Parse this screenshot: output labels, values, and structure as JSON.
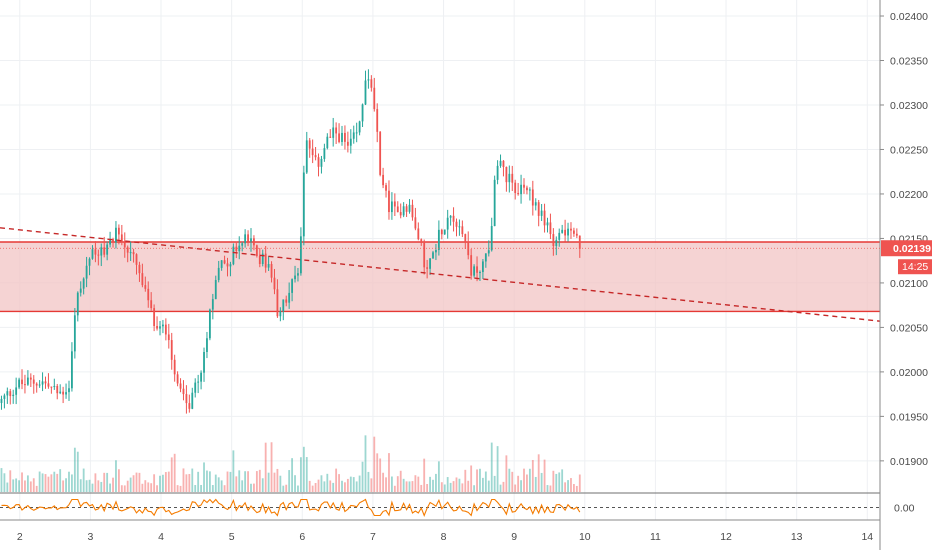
{
  "colors": {
    "up": "#26a69a",
    "down": "#ef5350",
    "zone_fill": "#f2c4c4",
    "zone_line": "#e53935",
    "trend": "#c62828",
    "oscillator": "#f57c00",
    "grid": "#eef0f3",
    "axis_text": "#4a4a4a",
    "price_label": "#ef5350"
  },
  "chart_data": {
    "type": "candlestick",
    "price_axis": {
      "ylim": [
        0.01865,
        0.02418
      ],
      "ticks": [
        "0.02400",
        "0.02350",
        "0.02300",
        "0.02250",
        "0.02200",
        "0.02150",
        "0.02100",
        "0.02050",
        "0.02000",
        "0.01950",
        "0.01900"
      ]
    },
    "time_axis": {
      "xlim": [
        1.72,
        14.18
      ],
      "ticks": [
        "2",
        "3",
        "4",
        "5",
        "6",
        "7",
        "8",
        "9",
        "10",
        "11",
        "12",
        "13",
        "14"
      ]
    },
    "last_price": "0.02139",
    "countdown": "14:25",
    "zone": {
      "upper": 0.02146,
      "lower": 0.02068
    },
    "trend_line": {
      "from": [
        1.72,
        0.02162
      ],
      "to": [
        14.18,
        0.02057
      ]
    },
    "keypoints": [
      [
        1.72,
        0.01965
      ],
      [
        1.95,
        0.01985
      ],
      [
        2.3,
        0.0199
      ],
      [
        2.55,
        0.01975
      ],
      [
        2.7,
        0.01985
      ],
      [
        2.8,
        0.0208
      ],
      [
        2.95,
        0.0212
      ],
      [
        3.05,
        0.0214
      ],
      [
        3.2,
        0.0213
      ],
      [
        3.35,
        0.0216
      ],
      [
        3.5,
        0.0214
      ],
      [
        3.65,
        0.0212
      ],
      [
        3.8,
        0.0208
      ],
      [
        3.95,
        0.02045
      ],
      [
        4.1,
        0.0205
      ],
      [
        4.2,
        0.0199
      ],
      [
        4.35,
        0.0196
      ],
      [
        4.45,
        0.0197
      ],
      [
        4.6,
        0.0201
      ],
      [
        4.7,
        0.0208
      ],
      [
        4.85,
        0.0212
      ],
      [
        5.0,
        0.0213
      ],
      [
        5.2,
        0.0215
      ],
      [
        5.4,
        0.0213
      ],
      [
        5.55,
        0.0211
      ],
      [
        5.65,
        0.0207
      ],
      [
        5.8,
        0.0209
      ],
      [
        5.95,
        0.0211
      ],
      [
        6.05,
        0.0226
      ],
      [
        6.2,
        0.0223
      ],
      [
        6.35,
        0.0226
      ],
      [
        6.5,
        0.0227
      ],
      [
        6.65,
        0.0225
      ],
      [
        6.8,
        0.0227
      ],
      [
        6.9,
        0.0233
      ],
      [
        7.0,
        0.0232
      ],
      [
        7.1,
        0.0223
      ],
      [
        7.2,
        0.0219
      ],
      [
        7.35,
        0.0218
      ],
      [
        7.5,
        0.0219
      ],
      [
        7.6,
        0.0216
      ],
      [
        7.75,
        0.0212
      ],
      [
        7.85,
        0.0213
      ],
      [
        7.95,
        0.0216
      ],
      [
        8.1,
        0.0218
      ],
      [
        8.2,
        0.0217
      ],
      [
        8.3,
        0.0215
      ],
      [
        8.4,
        0.0211
      ],
      [
        8.55,
        0.0212
      ],
      [
        8.65,
        0.0214
      ],
      [
        8.75,
        0.0224
      ],
      [
        8.85,
        0.0223
      ],
      [
        9.0,
        0.022
      ],
      [
        9.15,
        0.0221
      ],
      [
        9.3,
        0.0219
      ],
      [
        9.45,
        0.0217
      ],
      [
        9.55,
        0.0215
      ],
      [
        9.7,
        0.0216
      ],
      [
        9.85,
        0.0215
      ],
      [
        9.95,
        0.02139
      ]
    ],
    "oscillator_axis": {
      "ticks": [
        "0.00"
      ]
    }
  }
}
